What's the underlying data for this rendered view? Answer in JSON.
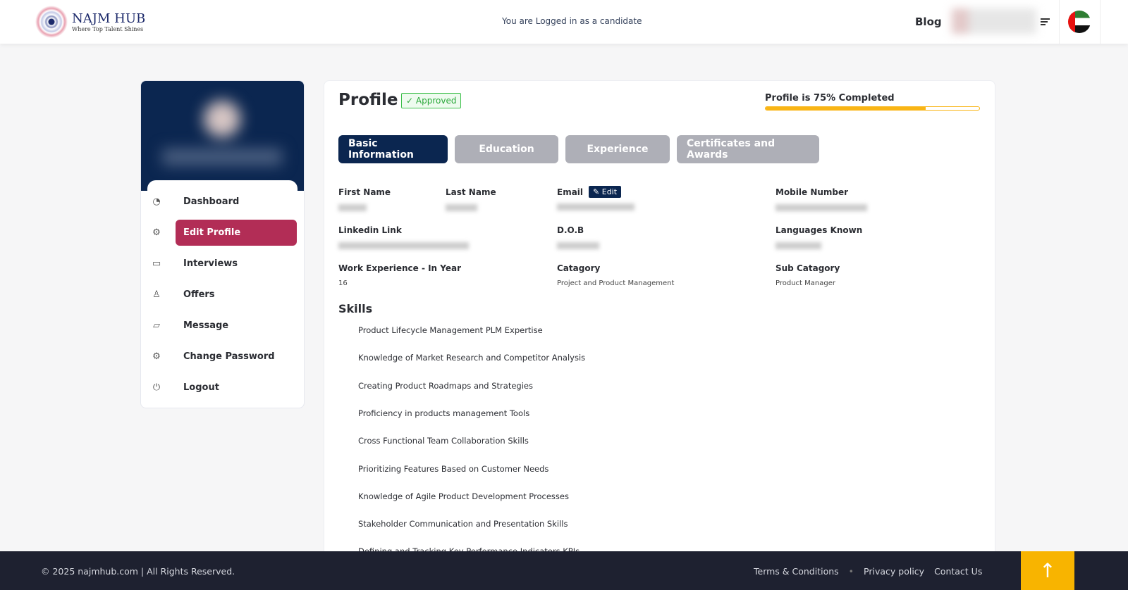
{
  "header": {
    "logo_title": "NAJM HUB",
    "logo_tagline": "Where Top Talent Shines",
    "login_note": "You are Logged in as a candidate",
    "blog": "Blog"
  },
  "sidebar": {
    "items": [
      {
        "label": "Dashboard",
        "icon": "pie-chart-icon",
        "active": false
      },
      {
        "label": "Edit Profile",
        "icon": "gear-icon",
        "active": true
      },
      {
        "label": "Interviews",
        "icon": "calendar-icon",
        "active": false
      },
      {
        "label": "Offers",
        "icon": "user-icon",
        "active": false
      },
      {
        "label": "Message",
        "icon": "chat-icon",
        "active": false
      },
      {
        "label": "Change Password",
        "icon": "gear-icon",
        "active": false
      },
      {
        "label": "Logout",
        "icon": "power-icon",
        "active": false
      }
    ]
  },
  "profile": {
    "title": "Profile",
    "status": "Approved",
    "progress_label": "Profile is 75% Completed",
    "progress_percent": 75,
    "tabs": [
      "Basic Information",
      "Education",
      "Experience",
      "Certificates and Awards"
    ],
    "fields": {
      "first_name": "First Name",
      "last_name": "Last Name",
      "email": "Email",
      "edit": "Edit",
      "mobile": "Mobile Number",
      "linkedin": "Linkedin Link",
      "dob": "D.O.B",
      "languages": "Languages Known",
      "work_exp": "Work Experience - In Year",
      "work_exp_value": "16",
      "category": "Catagory",
      "category_value": "Project and Product Management",
      "sub_category": "Sub Catagory",
      "sub_category_value": "Product Manager"
    },
    "skills_title": "Skills",
    "skills": [
      "Product Lifecycle Management PLM Expertise",
      "Knowledge of Market Research and Competitor Analysis",
      "Creating Product Roadmaps and Strategies",
      "Proficiency in products management Tools",
      "Cross Functional Team Collaboration Skills",
      "Prioritizing Features Based on Customer Needs",
      "Knowledge of Agile Product Development Processes",
      "Stakeholder Communication and Presentation Skills",
      "Defining and Tracking Key Performance Indicators KPIs"
    ]
  },
  "footer": {
    "copyright": "© 2025 najmhub.com | All Rights Reserved.",
    "links": [
      "Terms & Conditions",
      "Privacy policy",
      "Contact Us"
    ]
  },
  "colors": {
    "navy": "#0b2650",
    "accent": "#b22d56",
    "progress": "#f9b515",
    "footer": "#1e2130"
  }
}
